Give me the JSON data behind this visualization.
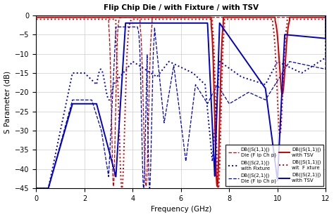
{
  "title": "Flip Chip Die / with Fixture / with TSV",
  "xlabel": "Frequency (GHz)",
  "ylabel": "S Parameter (dB)",
  "xlim": [
    0,
    12
  ],
  "ylim": [
    -45,
    0
  ],
  "yticks": [
    0,
    -5,
    -10,
    -15,
    -20,
    -25,
    -30,
    -35,
    -40,
    -45
  ],
  "xticks": [
    0,
    2,
    4,
    6,
    8,
    10,
    12
  ],
  "red": "#cc0000",
  "blue": "#0000cc",
  "background_color": "#ffffff",
  "grid_color": "#cccccc"
}
